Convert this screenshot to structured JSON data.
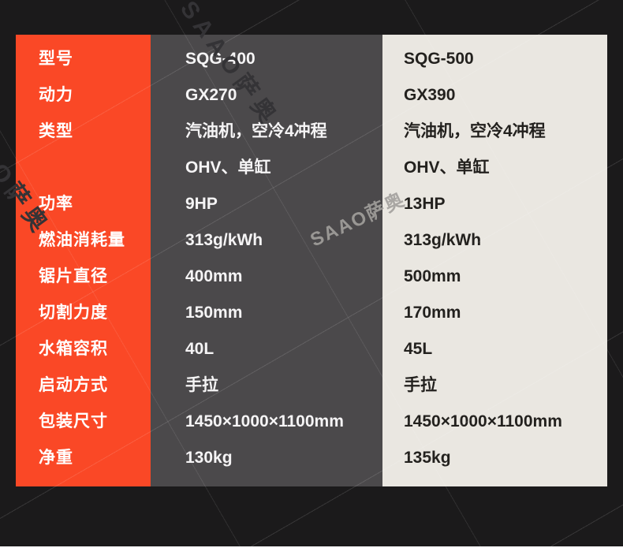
{
  "watermark": {
    "text": "SAAO萨奥"
  },
  "colors": {
    "background": "#1b1a1b",
    "label_column": "#fa4826",
    "model_400_column": "#4b494b",
    "model_500_column": "#eae7e1",
    "label_text": "#ffffff",
    "value_400_text": "#f5f4f5",
    "value_500_text": "#23211e",
    "bottom_strip": "#ffffff"
  },
  "table": {
    "rows": [
      {
        "label": "型号",
        "sqg400": "SQG-400",
        "sqg500": "SQG-500"
      },
      {
        "label": "动力",
        "sqg400": "GX270",
        "sqg500": "GX390"
      },
      {
        "label": "类型",
        "sqg400": "汽油机，空冷4冲程",
        "sqg500": "汽油机，空冷4冲程"
      },
      {
        "label": "",
        "sqg400": "OHV、单缸",
        "sqg500": "OHV、单缸"
      },
      {
        "label": "功率",
        "sqg400": "9HP",
        "sqg500": "13HP"
      },
      {
        "label": "燃油消耗量",
        "sqg400": "313g/kWh",
        "sqg500": "313g/kWh"
      },
      {
        "label": "锯片直径",
        "sqg400": "400mm",
        "sqg500": "500mm"
      },
      {
        "label": "切割力度",
        "sqg400": "150mm",
        "sqg500": "170mm"
      },
      {
        "label": "水箱容积",
        "sqg400": "40L",
        "sqg500": "45L"
      },
      {
        "label": "启动方式",
        "sqg400": "手拉",
        "sqg500": "手拉"
      },
      {
        "label": "包装尺寸",
        "sqg400": "1450×1000×1100mm",
        "sqg500": "1450×1000×1100mm"
      },
      {
        "label": "净重",
        "sqg400": "130kg",
        "sqg500": "135kg"
      }
    ]
  }
}
